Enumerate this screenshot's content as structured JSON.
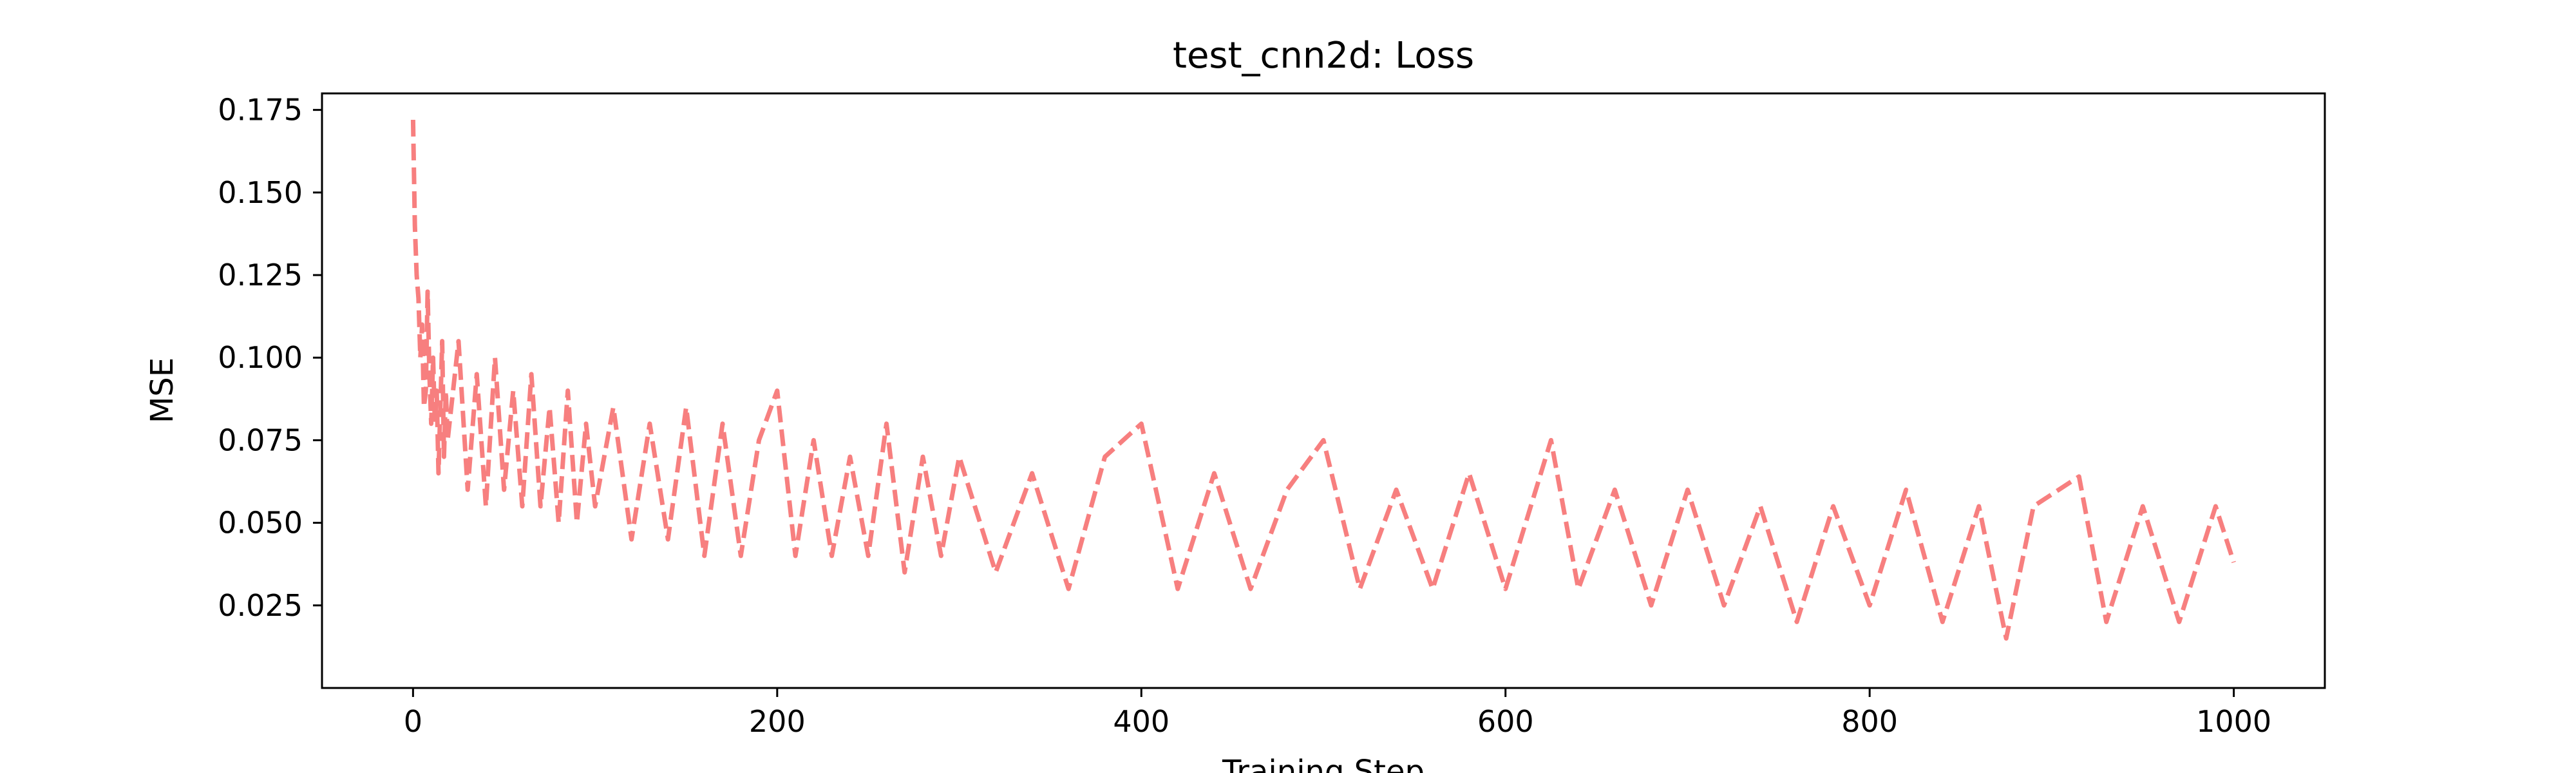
{
  "chart_data": {
    "type": "line",
    "title": "test_cnn2d: Loss",
    "xlabel": "Training Step",
    "ylabel": "MSE",
    "xlim": [
      -50,
      1050
    ],
    "ylim": [
      0.0,
      0.18
    ],
    "xticks": [
      0,
      200,
      400,
      600,
      800,
      1000
    ],
    "xtick_labels": [
      "0",
      "200",
      "400",
      "600",
      "800",
      "1000"
    ],
    "yticks": [
      0.025,
      0.05,
      0.075,
      0.1,
      0.125,
      0.15,
      0.175
    ],
    "ytick_labels": [
      "0.025",
      "0.050",
      "0.075",
      "0.100",
      "0.125",
      "0.150",
      "0.175"
    ],
    "grid": false,
    "series": [
      {
        "color": "#f77f7f",
        "line_style": "dashed",
        "x": [
          0,
          1,
          2,
          3,
          4,
          5,
          6,
          7,
          8,
          9,
          10,
          11,
          12,
          13,
          14,
          15,
          16,
          17,
          18,
          19,
          20,
          25,
          30,
          35,
          40,
          45,
          50,
          55,
          60,
          65,
          70,
          75,
          80,
          85,
          90,
          95,
          100,
          110,
          120,
          130,
          140,
          150,
          160,
          170,
          180,
          190,
          200,
          210,
          220,
          230,
          240,
          250,
          260,
          270,
          280,
          290,
          300,
          320,
          340,
          360,
          380,
          400,
          420,
          440,
          460,
          480,
          500,
          520,
          540,
          560,
          580,
          600,
          625,
          640,
          660,
          680,
          700,
          720,
          740,
          760,
          780,
          800,
          820,
          840,
          860,
          875,
          890,
          915,
          930,
          950,
          970,
          990,
          1000
        ],
        "y": [
          0.172,
          0.14,
          0.125,
          0.118,
          0.1,
          0.11,
          0.085,
          0.09,
          0.12,
          0.095,
          0.08,
          0.1,
          0.08,
          0.09,
          0.065,
          0.085,
          0.105,
          0.07,
          0.09,
          0.075,
          0.08,
          0.105,
          0.06,
          0.095,
          0.055,
          0.1,
          0.06,
          0.09,
          0.055,
          0.095,
          0.055,
          0.085,
          0.05,
          0.09,
          0.05,
          0.08,
          0.055,
          0.085,
          0.045,
          0.08,
          0.045,
          0.085,
          0.04,
          0.08,
          0.04,
          0.075,
          0.09,
          0.04,
          0.075,
          0.04,
          0.07,
          0.04,
          0.08,
          0.035,
          0.07,
          0.04,
          0.07,
          0.035,
          0.065,
          0.03,
          0.07,
          0.08,
          0.03,
          0.065,
          0.03,
          0.06,
          0.075,
          0.03,
          0.06,
          0.03,
          0.065,
          0.03,
          0.075,
          0.03,
          0.06,
          0.025,
          0.06,
          0.025,
          0.055,
          0.02,
          0.055,
          0.025,
          0.06,
          0.02,
          0.055,
          0.015,
          0.055,
          0.064,
          0.02,
          0.055,
          0.02,
          0.055,
          0.038
        ]
      }
    ]
  }
}
